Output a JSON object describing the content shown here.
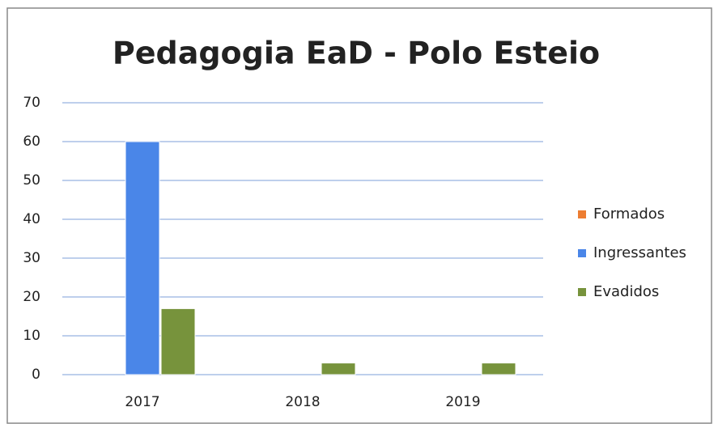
{
  "chart_data": {
    "type": "bar",
    "title": "Pedagogia EaD - Polo Esteio",
    "categories": [
      "2017",
      "2018",
      "2019"
    ],
    "series": [
      {
        "name": "Formados",
        "color": "#ed7d31",
        "values": [
          0,
          0,
          0
        ]
      },
      {
        "name": "Ingressantes",
        "color": "#4a86e8",
        "values": [
          60,
          0,
          0
        ]
      },
      {
        "name": "Evadidos",
        "color": "#77933c",
        "values": [
          17,
          3,
          3
        ]
      }
    ],
    "ylim": [
      0,
      70
    ],
    "yticks": [
      0,
      10,
      20,
      30,
      40,
      50,
      60,
      70
    ],
    "grid": true,
    "legend": "right"
  }
}
